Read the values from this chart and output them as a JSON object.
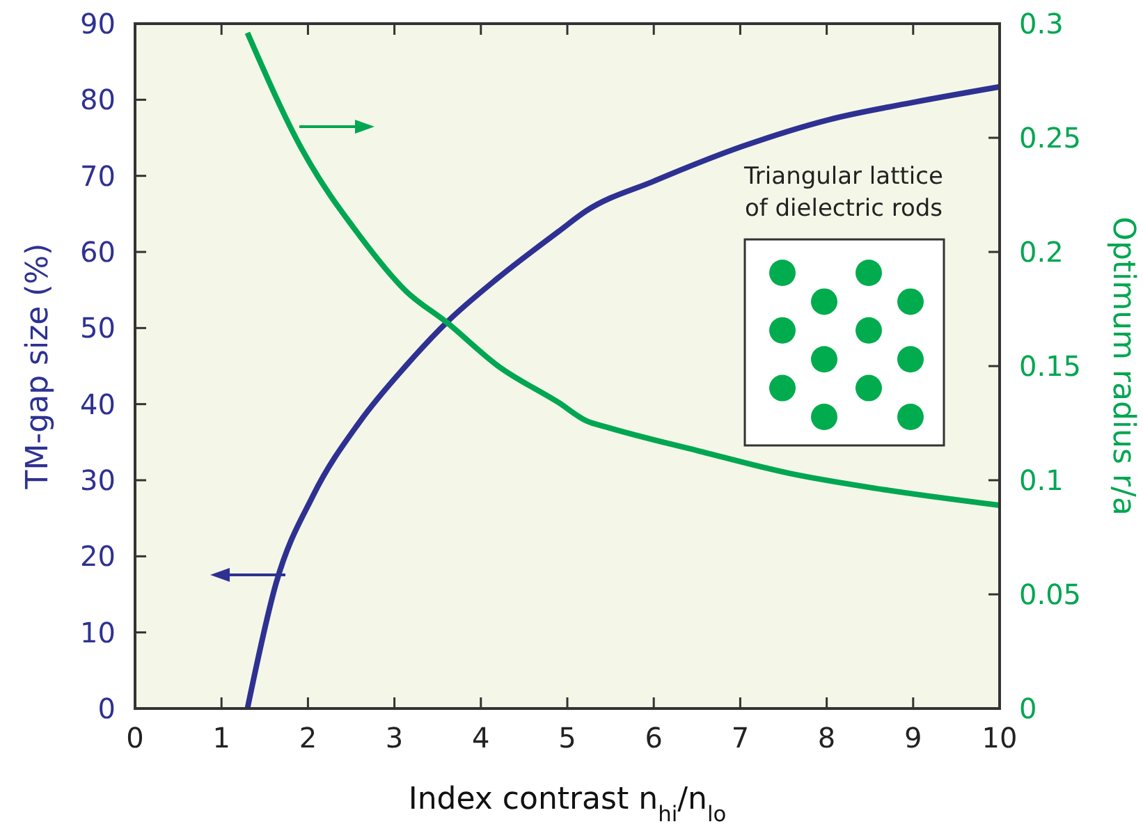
{
  "chart_data": {
    "type": "line",
    "xlabel": "Index contrast  n$_{hi}$/n$_{lo}$",
    "ylabel": "TM-gap size  (%)",
    "y2label": "Optimum radius  r/a",
    "xlim": [
      0,
      10
    ],
    "xticks": [
      0,
      1,
      2,
      3,
      4,
      5,
      6,
      7,
      8,
      9,
      10
    ],
    "ylim": [
      0,
      90
    ],
    "yticks": [
      0,
      10,
      20,
      30,
      40,
      50,
      60,
      70,
      80,
      90
    ],
    "y2lim": [
      0,
      0.3
    ],
    "y2ticks": [
      0,
      0.05,
      0.1,
      0.15,
      0.2,
      0.25,
      0.3
    ],
    "grid": false,
    "marker": "none",
    "line_style": "solid",
    "annotations": [
      "Triangular lattice",
      "of dielectric rods"
    ],
    "series": [
      {
        "color": "#2e3192",
        "x": [
          1.3,
          1.63,
          2.06,
          2.6,
          3.13,
          3.61,
          4.2,
          4.9,
          5.22,
          6,
          7.03,
          8.03,
          9.02,
          10
        ],
        "values": [
          0,
          16.4,
          28,
          37.7,
          45,
          50.8,
          56.6,
          62.7,
          65.4,
          69.3,
          73.9,
          77.4,
          79.7,
          81.7
        ]
      },
      {
        "color": "#00a651",
        "axis": "y2",
        "x": [
          1.3,
          1.93,
          2.6,
          3.13,
          3.61,
          4.2,
          4.9,
          5.22,
          5.48,
          6.5,
          7.57,
          8.64,
          10
        ],
        "values": [
          0.296,
          0.245,
          0.207,
          0.183,
          0.169,
          0.15,
          0.134,
          0.126,
          0.123,
          0.113,
          0.103,
          0.096,
          0.089
        ]
      }
    ]
  }
}
